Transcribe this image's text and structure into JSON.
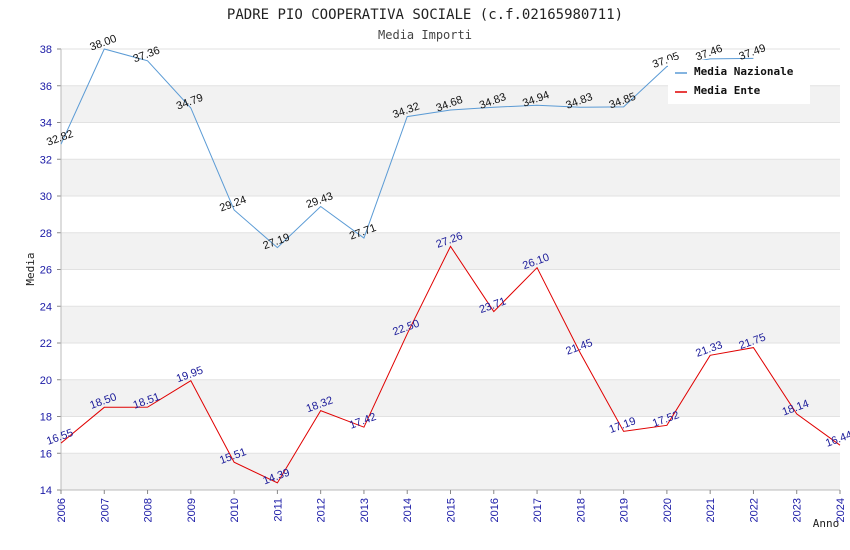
{
  "chart_data": {
    "type": "line",
    "title": "PADRE PIO COOPERATIVA SOCIALE (c.f.02165980711)",
    "subtitle": "Media Importi",
    "xlabel": "Anno",
    "ylabel": "Media",
    "ylim": [
      14,
      38
    ],
    "yticks": [
      "14",
      "16",
      "18",
      "20",
      "22",
      "24",
      "26",
      "28",
      "30",
      "32",
      "34",
      "36",
      "38"
    ],
    "categories": [
      "2006",
      "2007",
      "2008",
      "2009",
      "2010",
      "2011",
      "2012",
      "2013",
      "2014",
      "2015",
      "2016",
      "2017",
      "2018",
      "2019",
      "2020",
      "2021",
      "2022",
      "2023",
      "2024"
    ],
    "grid": true,
    "legend_position": "top-right",
    "series": [
      {
        "name": "Media Nazionale",
        "color": "#5b9bd5",
        "values": [
          32.82,
          38.0,
          37.36,
          34.79,
          29.24,
          27.19,
          29.43,
          27.71,
          34.32,
          34.68,
          34.83,
          34.94,
          34.83,
          34.85,
          37.05,
          37.46,
          37.49,
          null,
          null
        ],
        "labels": [
          "32.82",
          "38.00",
          "37.36",
          "34.79",
          "29.24",
          "27.19",
          "29.43",
          "27.71",
          "34.32",
          "34.68",
          "34.83",
          "34.94",
          "34.83",
          "34.85",
          "37.05",
          "37.46",
          "37.49",
          "",
          ""
        ]
      },
      {
        "name": "Media Ente",
        "color": "#e00000",
        "values": [
          16.55,
          18.5,
          18.51,
          19.95,
          15.51,
          14.39,
          18.32,
          17.42,
          22.5,
          27.26,
          23.71,
          26.1,
          21.45,
          17.19,
          17.52,
          21.33,
          21.75,
          18.14,
          16.44
        ],
        "labels": [
          "16.55",
          "18.50",
          "18.51",
          "19.95",
          "15.51",
          "14.39",
          "18.32",
          "17.42",
          "22.50",
          "27.26",
          "23.71",
          "26.10",
          "21.45",
          "17.19",
          "17.52",
          "21.33",
          "21.75",
          "18.14",
          "16.44"
        ]
      }
    ]
  }
}
